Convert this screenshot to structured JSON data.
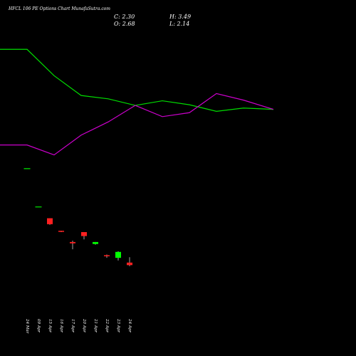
{
  "chart_data": {
    "type": "candlestick",
    "title": "HFCL 106 PE Options Chart MunafaSutra.com",
    "ohlc_labels": {
      "close": "C: 2.30",
      "high": "H: 3.49",
      "open": "O: 2.68",
      "low": "L: 2.14"
    },
    "x_labels": [
      "24 Mar",
      "09 Apr",
      "15 Apr",
      "16 Apr",
      "17 Apr",
      "20 Apr",
      "21 Apr",
      "22 Apr",
      "23 Apr",
      "24 Apr"
    ],
    "candles": [
      {
        "date": "24 Mar",
        "open": 17.0,
        "high": 17.0,
        "low": 17.0,
        "close": 17.0,
        "color": "#00c000"
      },
      {
        "date": "09 Apr",
        "open": 11.2,
        "high": 11.2,
        "low": 11.2,
        "close": 11.2,
        "color": "#00c000"
      },
      {
        "date": "15 Apr",
        "open": 9.4,
        "high": 9.4,
        "low": 8.4,
        "close": 8.5,
        "color": "#ff2020"
      },
      {
        "date": "16 Apr",
        "open": 7.5,
        "high": 7.5,
        "low": 7.3,
        "close": 7.35,
        "color": "#ff2020"
      },
      {
        "date": "17 Apr",
        "open": 5.8,
        "high": 6.0,
        "low": 4.7,
        "close": 5.6,
        "color": "#ff2020"
      },
      {
        "date": "20 Apr",
        "open": 7.3,
        "high": 7.3,
        "low": 6.2,
        "close": 6.7,
        "color": "#ff2020"
      },
      {
        "date": "21 Apr",
        "open": 5.5,
        "high": 5.8,
        "low": 5.4,
        "close": 5.8,
        "color": "#00ff00"
      },
      {
        "date": "22 Apr",
        "open": 3.8,
        "high": 3.9,
        "low": 3.4,
        "close": 3.7,
        "color": "#ff2020"
      },
      {
        "date": "23 Apr",
        "open": 3.4,
        "high": 4.4,
        "low": 3.0,
        "close": 4.3,
        "color": "#00ff00"
      },
      {
        "date": "24 Apr",
        "open": 2.68,
        "high": 3.49,
        "low": 2.14,
        "close": 2.3,
        "color": "#ff2020"
      }
    ],
    "ylim": [
      -5,
      36
    ],
    "green_line": [
      {
        "x": 0,
        "y": 35
      },
      {
        "x": 0.38,
        "y": 35
      },
      {
        "x": 0.76,
        "y": 31
      },
      {
        "x": 1.14,
        "y": 28
      },
      {
        "x": 1.52,
        "y": 27.5
      },
      {
        "x": 1.9,
        "y": 26.5
      },
      {
        "x": 2.28,
        "y": 27.2
      },
      {
        "x": 2.66,
        "y": 26.6
      },
      {
        "x": 3.04,
        "y": 25.6
      },
      {
        "x": 3.42,
        "y": 26.1
      },
      {
        "x": 3.84,
        "y": 25.9
      }
    ],
    "magenta_line": [
      {
        "x": 0,
        "y": 20.5
      },
      {
        "x": 0.38,
        "y": 20.5
      },
      {
        "x": 0.76,
        "y": 19
      },
      {
        "x": 1.14,
        "y": 22
      },
      {
        "x": 1.52,
        "y": 24
      },
      {
        "x": 1.9,
        "y": 26.5
      },
      {
        "x": 2.28,
        "y": 24.8
      },
      {
        "x": 2.66,
        "y": 25.4
      },
      {
        "x": 3.04,
        "y": 28.3
      },
      {
        "x": 3.42,
        "y": 27.3
      },
      {
        "x": 3.84,
        "y": 25.9
      }
    ],
    "line_colors": {
      "green": "#00dd00",
      "magenta": "#cc00cc"
    }
  }
}
